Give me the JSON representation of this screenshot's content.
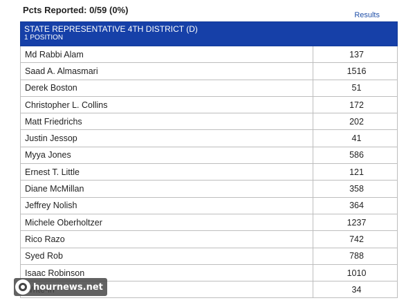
{
  "header": {
    "pcts_reported": "Pcts Reported: 0/59 (0%)",
    "results_link": "Results"
  },
  "race": {
    "title": "STATE REPRESENTATIVE 4TH DISTRICT (D)",
    "positions": "1 POSITION",
    "header_color": "#1640a8"
  },
  "candidates": [
    {
      "name": "Md Rabbi Alam",
      "votes": "137"
    },
    {
      "name": "Saad A. Almasmari",
      "votes": "1516"
    },
    {
      "name": "Derek Boston",
      "votes": "51"
    },
    {
      "name": "Christopher L. Collins",
      "votes": "172"
    },
    {
      "name": "Matt Friedrichs",
      "votes": "202"
    },
    {
      "name": "Justin Jessop",
      "votes": "41"
    },
    {
      "name": "Myya Jones",
      "votes": "586"
    },
    {
      "name": "Ernest T. Little",
      "votes": "121"
    },
    {
      "name": "Diane McMillan",
      "votes": "358"
    },
    {
      "name": "Jeffrey Nolish",
      "votes": "364"
    },
    {
      "name": "Michele Oberholtzer",
      "votes": "1237"
    },
    {
      "name": "Rico Razo",
      "votes": "742"
    },
    {
      "name": "Syed Rob",
      "votes": "788"
    },
    {
      "name": "Isaac Robinson",
      "votes": "1010"
    },
    {
      "name": "Write-in",
      "votes": "34"
    }
  ],
  "watermark": {
    "text": "hournews.net",
    "icon": "logo-icon"
  }
}
